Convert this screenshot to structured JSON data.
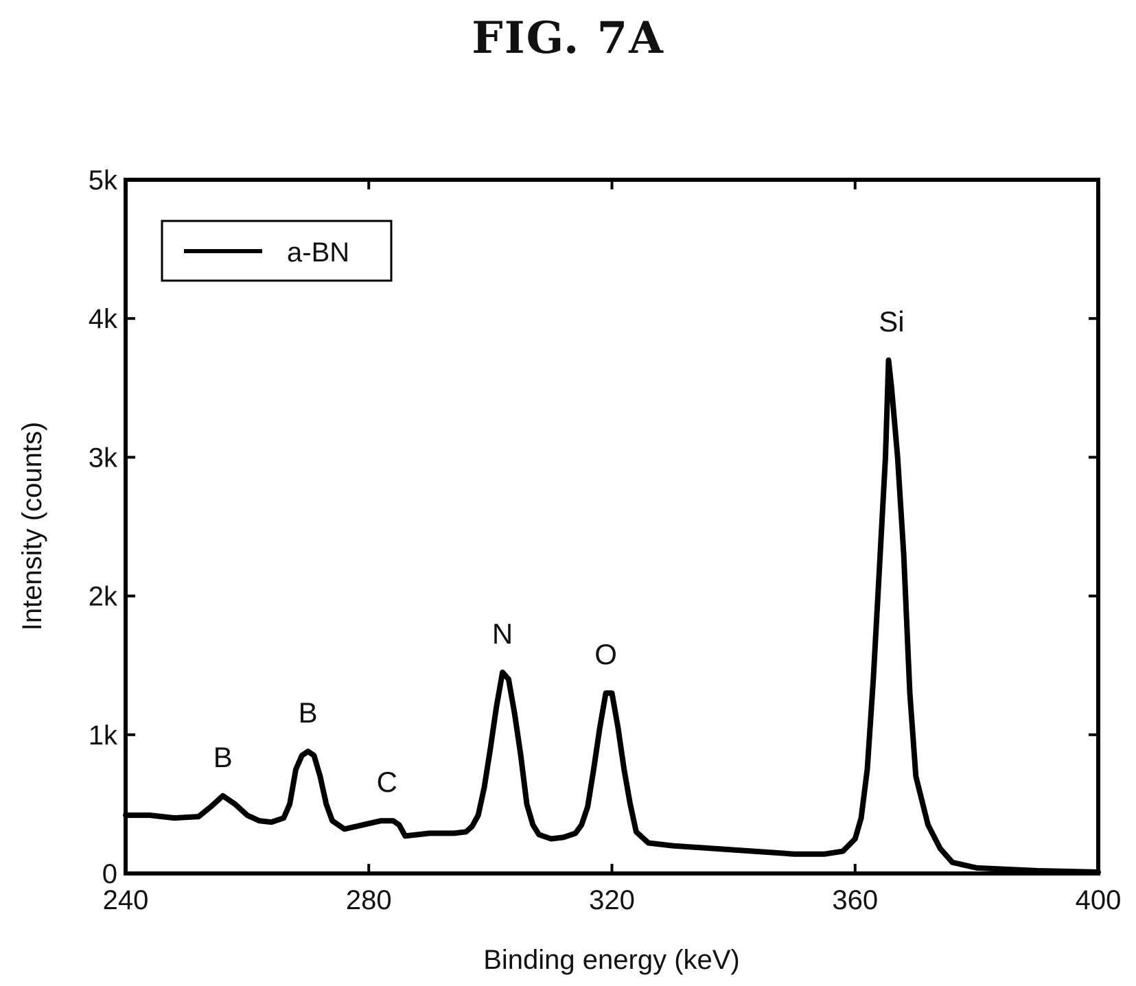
{
  "figure_title": "FIG. 7A",
  "chart_data": {
    "type": "line",
    "title": "",
    "xlabel": "Binding energy (keV)",
    "ylabel": "Intensity (counts)",
    "xlim": [
      240,
      400
    ],
    "ylim": [
      0,
      5000
    ],
    "xticks": [
      240,
      280,
      320,
      360,
      400
    ],
    "xtick_labels": [
      "240",
      "280",
      "320",
      "360",
      "400"
    ],
    "yticks": [
      0,
      1000,
      2000,
      3000,
      4000,
      5000
    ],
    "ytick_labels": [
      "0",
      "1k",
      "2k",
      "3k",
      "4k",
      "5k"
    ],
    "grid": false,
    "legend_position": "top-left",
    "colors": {
      "line": "#000000",
      "axes": "#000000"
    },
    "series": [
      {
        "name": "a-BN",
        "x": [
          240,
          244,
          248,
          252,
          254,
          256,
          258,
          260,
          262,
          264,
          266,
          267,
          268,
          269,
          270,
          271,
          272,
          273,
          274,
          276,
          278,
          280,
          282,
          284,
          285,
          286,
          290,
          294,
          296,
          297,
          298,
          299,
          300,
          301,
          302,
          303,
          304,
          305,
          306,
          307,
          308,
          310,
          312,
          314,
          315,
          316,
          317,
          318,
          319,
          320,
          321,
          322,
          323,
          324,
          326,
          330,
          340,
          350,
          355,
          358,
          360,
          361,
          362,
          363,
          364,
          365,
          365.5,
          366,
          367,
          368,
          369,
          370,
          372,
          374,
          376,
          380,
          390,
          400
        ],
        "y": [
          420,
          420,
          400,
          410,
          480,
          560,
          500,
          420,
          380,
          370,
          400,
          500,
          750,
          850,
          880,
          850,
          700,
          500,
          380,
          320,
          340,
          360,
          380,
          380,
          350,
          270,
          290,
          290,
          300,
          340,
          420,
          620,
          900,
          1200,
          1450,
          1400,
          1150,
          850,
          500,
          350,
          280,
          250,
          260,
          290,
          350,
          480,
          750,
          1050,
          1300,
          1300,
          1050,
          750,
          500,
          300,
          220,
          200,
          170,
          140,
          140,
          160,
          250,
          400,
          750,
          1400,
          2200,
          3000,
          3700,
          3500,
          3000,
          2300,
          1300,
          700,
          350,
          180,
          80,
          40,
          20,
          10
        ]
      }
    ],
    "annotations": [
      {
        "text": "B",
        "x": 256,
        "y": 560
      },
      {
        "text": "B",
        "x": 270,
        "y": 880
      },
      {
        "text": "C",
        "x": 283,
        "y": 380
      },
      {
        "text": "N",
        "x": 302,
        "y": 1450
      },
      {
        "text": "O",
        "x": 319,
        "y": 1300
      },
      {
        "text": "Si",
        "x": 366,
        "y": 3700
      }
    ]
  }
}
